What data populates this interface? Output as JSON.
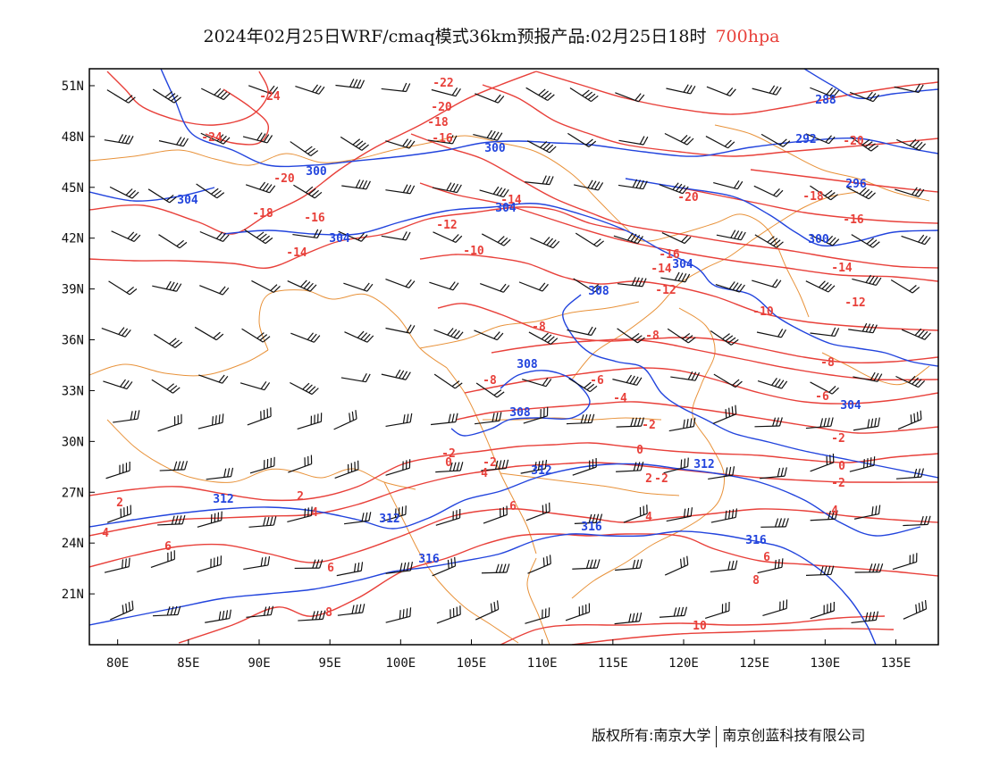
{
  "title": {
    "main": "2024年02月25日WRF/cmaq模式36km预报产品:02月25日18时",
    "level": "700hpa"
  },
  "footer": {
    "left": "版权所有:南京大学",
    "right": "南京创蓝科技有限公司"
  },
  "colors": {
    "temperature": "#e8403a",
    "height": "#2244dd",
    "boundary": "#e8923a",
    "wind": "#111111",
    "frame": "#000000",
    "level_text": "#e8403a"
  },
  "map": {
    "lon_ticks": [
      "80E",
      "85E",
      "90E",
      "95E",
      "100E",
      "105E",
      "110E",
      "115E",
      "120E",
      "125E",
      "130E",
      "135E"
    ],
    "lat_ticks": [
      "51N",
      "48N",
      "45N",
      "42N",
      "39N",
      "36N",
      "33N",
      "30N",
      "27N",
      "24N",
      "21N"
    ]
  },
  "chart_data": {
    "type": "map",
    "lon_range": [
      78,
      138
    ],
    "lat_range": [
      18,
      52
    ],
    "temperature_contours": [
      {
        "value": -24,
        "label": "-24"
      },
      {
        "value": -22,
        "label": "-22"
      },
      {
        "value": -20,
        "label": "-20"
      },
      {
        "value": -18,
        "label": "-18"
      },
      {
        "value": -16,
        "label": "-16"
      },
      {
        "value": -14,
        "label": "-14"
      },
      {
        "value": -12,
        "label": "-12"
      },
      {
        "value": -10,
        "label": "-10"
      },
      {
        "value": -8,
        "label": "-8"
      },
      {
        "value": -6,
        "label": "-6"
      },
      {
        "value": -4,
        "label": "-4"
      },
      {
        "value": -2,
        "label": "-2"
      },
      {
        "value": 0,
        "label": "0"
      },
      {
        "value": 2,
        "label": "2"
      },
      {
        "value": 4,
        "label": "4"
      },
      {
        "value": 6,
        "label": "6"
      },
      {
        "value": 8,
        "label": "8"
      },
      {
        "value": 10,
        "label": "10"
      }
    ],
    "height_contours": [
      {
        "value": 288,
        "label": "288"
      },
      {
        "value": 292,
        "label": "292"
      },
      {
        "value": 296,
        "label": "296"
      },
      {
        "value": 300,
        "label": "300"
      },
      {
        "value": 304,
        "label": "304"
      },
      {
        "value": 308,
        "label": "308"
      },
      {
        "value": 312,
        "label": "312"
      },
      {
        "value": 316,
        "label": "316"
      }
    ]
  }
}
